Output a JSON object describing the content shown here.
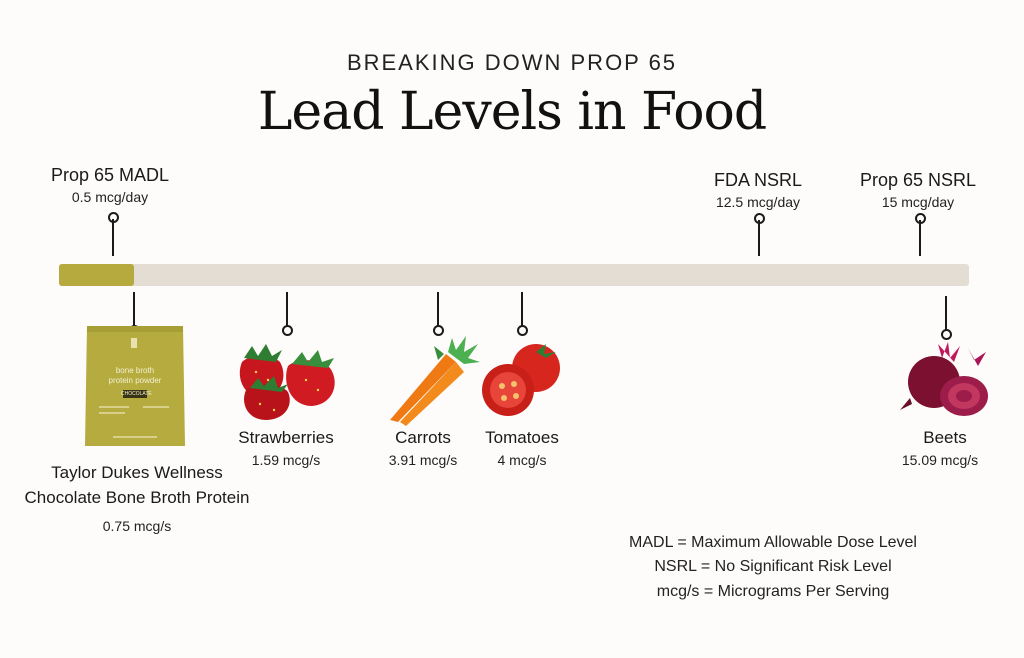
{
  "header": {
    "kicker": "BREAKING DOWN PROP 65",
    "title": "Lead Levels in Food"
  },
  "thresholds": [
    {
      "label": "Prop 65 MADL",
      "value": "0.5 mcg/day"
    },
    {
      "label": "FDA NSRL",
      "value": "12.5 mcg/day"
    },
    {
      "label": "Prop 65 NSRL",
      "value": "15 mcg/day"
    }
  ],
  "bar": {
    "fill_value": 0.75,
    "max_value": 15.5
  },
  "foods": [
    {
      "name_line1": "Taylor Dukes Wellness",
      "name_line2": "Chocolate Bone Broth Protein",
      "value": "0.75 mcg/s",
      "icon": "protein-pouch-icon"
    },
    {
      "name": "Strawberries",
      "value": "1.59 mcg/s",
      "icon": "strawberries-icon"
    },
    {
      "name": "Carrots",
      "value": "3.91 mcg/s",
      "icon": "carrots-icon"
    },
    {
      "name": "Tomatoes",
      "value": "4 mcg/s",
      "icon": "tomatoes-icon"
    },
    {
      "name": "Beets",
      "value": "15.09 mcg/s",
      "icon": "beets-icon"
    }
  ],
  "package": {
    "line1": "bone broth",
    "line2": "protein powder",
    "flavor": "CHOCOLATE"
  },
  "legend": [
    "MADL = Maximum Allowable Dose Level",
    "NSRL = No Significant Risk Level",
    "mcg/s = Micrograms Per Serving"
  ],
  "colors": {
    "accent": "#b6aa3e",
    "track": "#e3ddd3",
    "background": "#fdfcfa"
  }
}
